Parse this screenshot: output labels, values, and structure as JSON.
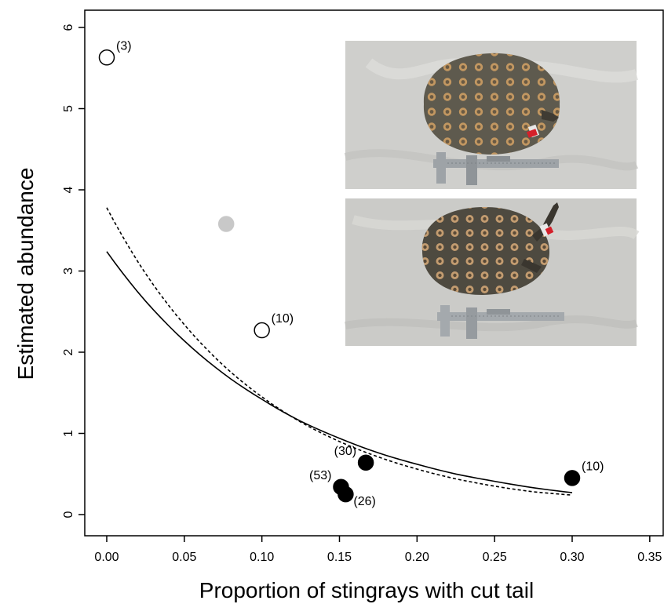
{
  "chart_data": {
    "type": "scatter",
    "xlabel": "Proportion of stingrays with cut tail",
    "ylabel": "Estimated abundance",
    "xlim": [
      0,
      0.35
    ],
    "ylim": [
      0,
      6
    ],
    "x_ticks": [
      "0.00",
      "0.05",
      "0.10",
      "0.15",
      "0.20",
      "0.25",
      "0.30",
      "0.35"
    ],
    "y_ticks": [
      "0",
      "1",
      "2",
      "3",
      "4",
      "5",
      "6"
    ],
    "grid": false,
    "points": [
      {
        "x": 0.0,
        "y": 5.63,
        "fill": "#ffffff",
        "label": "(3)",
        "label_side": "upper-right"
      },
      {
        "x": 0.077,
        "y": 3.58,
        "fill": "#c8c8c8",
        "label": "",
        "label_side": "none"
      },
      {
        "x": 0.1,
        "y": 2.27,
        "fill": "#ffffff",
        "label": "(10)",
        "label_side": "upper-right"
      },
      {
        "x": 0.167,
        "y": 0.64,
        "fill": "#000000",
        "label": "(30)",
        "label_side": "upper-left"
      },
      {
        "x": 0.151,
        "y": 0.34,
        "fill": "#000000",
        "label": "(53)",
        "label_side": "upper-left"
      },
      {
        "x": 0.154,
        "y": 0.25,
        "fill": "#000000",
        "label": "(26)",
        "label_side": "lower-right"
      },
      {
        "x": 0.3,
        "y": 0.45,
        "fill": "#000000",
        "label": "(10)",
        "label_side": "upper-right"
      }
    ],
    "curves": [
      {
        "style": "solid",
        "x": [
          0.0,
          0.025,
          0.05,
          0.075,
          0.1,
          0.125,
          0.15,
          0.175,
          0.2,
          0.225,
          0.25,
          0.275,
          0.3
        ],
        "y": [
          3.24,
          2.63,
          2.14,
          1.74,
          1.42,
          1.15,
          0.94,
          0.76,
          0.62,
          0.5,
          0.41,
          0.33,
          0.27
        ]
      },
      {
        "style": "dashed",
        "x": [
          0.0,
          0.025,
          0.05,
          0.075,
          0.1,
          0.125,
          0.15,
          0.175,
          0.2,
          0.225,
          0.25,
          0.275,
          0.3
        ],
        "y": [
          3.78,
          2.97,
          2.34,
          1.84,
          1.45,
          1.14,
          0.9,
          0.71,
          0.56,
          0.44,
          0.35,
          0.28,
          0.24
        ]
      }
    ]
  },
  "inset_photos": [
    {
      "subject": "stingray-with-intact-tail-and-caliper",
      "colors": {
        "background": "#cfcfcc",
        "body": "#5e5a4e",
        "spots": "#c79a62",
        "caliper": "#9ea3a7"
      }
    },
    {
      "subject": "stingray-with-cut-tail-and-caliper",
      "colors": {
        "background": "#cbcbc8",
        "body": "#4e4a40",
        "spots": "#c9a072",
        "caliper": "#a4a9ad"
      }
    }
  ]
}
